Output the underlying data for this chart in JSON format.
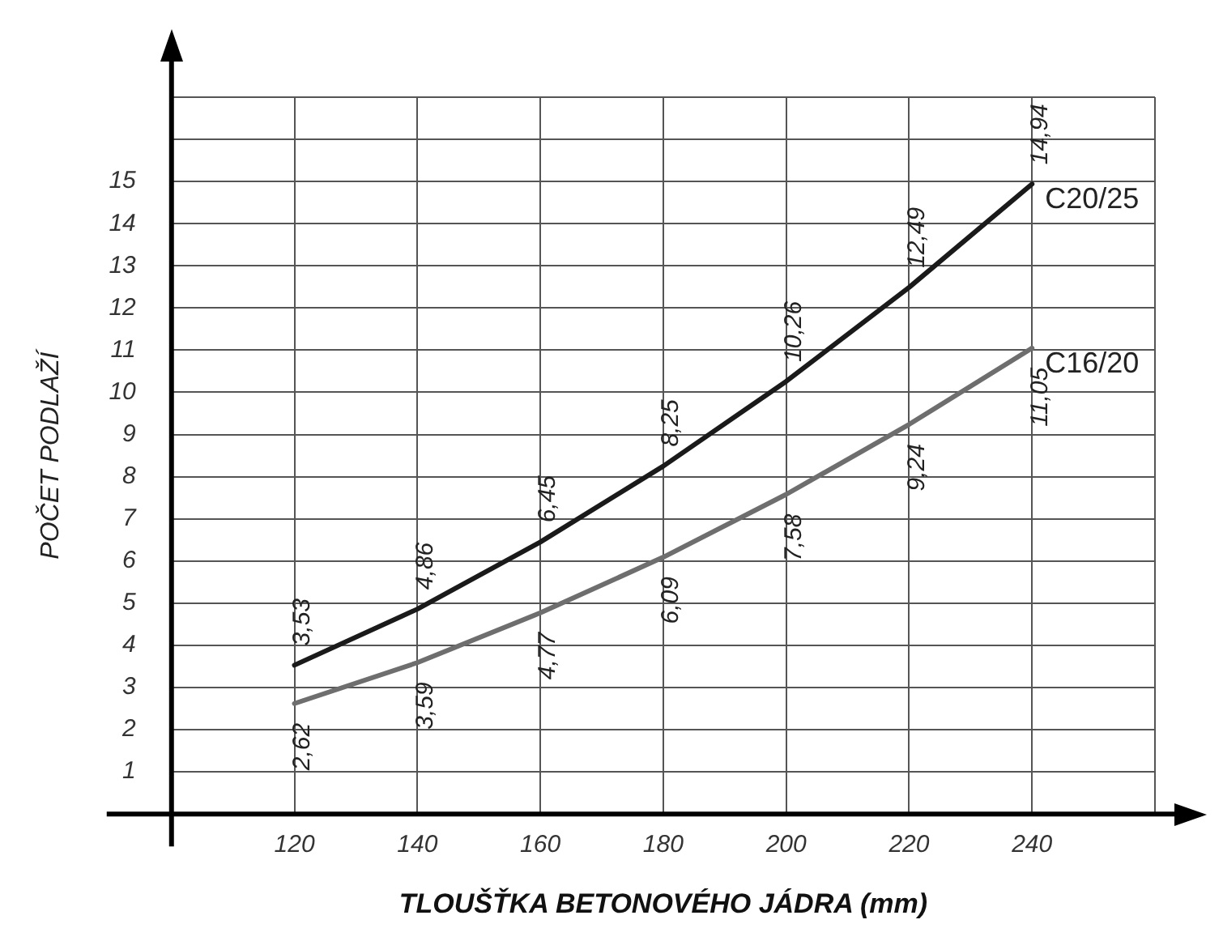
{
  "chart_data": {
    "type": "line",
    "xlabel": "TLOUŠŤKA BETONOVÉHO JÁDRA (mm)",
    "ylabel": "POČET PODLAŽÍ",
    "x": [
      120,
      140,
      160,
      180,
      200,
      220,
      240
    ],
    "series": [
      {
        "name": "C20/25",
        "color": "#1a1a1a",
        "values": [
          3.53,
          4.86,
          6.45,
          8.25,
          10.26,
          12.49,
          14.94
        ],
        "value_labels": [
          "3,53",
          "4,86",
          "6,45",
          "8,25",
          "10,26",
          "12,49",
          "14,94"
        ]
      },
      {
        "name": "C16/20",
        "color": "#6e6e6e",
        "values": [
          2.62,
          3.59,
          4.77,
          6.09,
          7.58,
          9.24,
          11.05
        ],
        "value_labels": [
          "2,62",
          "3,59",
          "4,77",
          "6,09",
          "7,58",
          "9,24",
          "11,05"
        ]
      }
    ],
    "xlim": [
      100,
      260
    ],
    "xticks": [
      120,
      140,
      160,
      180,
      200,
      220,
      240,
      {
        "value": 260,
        "label": null
      }
    ],
    "ylim": [
      0,
      17
    ],
    "yticks": [
      1,
      2,
      3,
      4,
      5,
      6,
      7,
      8,
      9,
      10,
      11,
      12,
      13,
      14,
      15,
      {
        "value": 16,
        "label": null
      },
      {
        "value": 17,
        "label": null
      }
    ],
    "grid": true,
    "legend": false,
    "marker": "none",
    "line_style": "solid"
  }
}
